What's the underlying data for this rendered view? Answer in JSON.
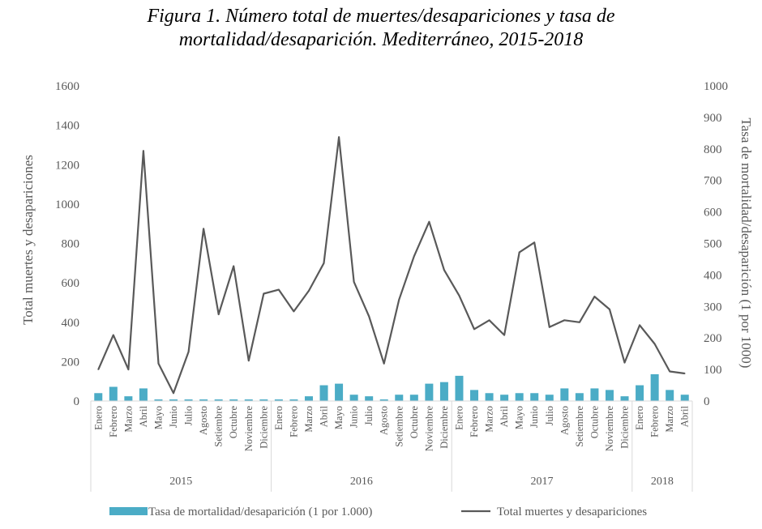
{
  "title": {
    "line1": "Figura 1. Número total de muertes/desapariciones y tasa de",
    "line2": "mortalidad/desaparición. Mediterráneo, 2015-2018"
  },
  "chart_data": {
    "type": "bar+line",
    "ylabel_left": "Total muertes y desapariciones",
    "ylabel_right": "Tasa de mortalidad/desaparición (1 por 1000)",
    "ylim_left": [
      0,
      1600
    ],
    "yticks_left": [
      "0",
      "200",
      "400",
      "600",
      "800",
      "1000",
      "1200",
      "1400",
      "1600"
    ],
    "ylim_right": [
      0,
      1000
    ],
    "yticks_right": [
      "0",
      "100",
      "200",
      "300",
      "400",
      "500",
      "600",
      "700",
      "800",
      "900",
      "1000"
    ],
    "grid": false,
    "legend_position": "bottom",
    "months": [
      "Enero",
      "Febrero",
      "Marzo",
      "Abril",
      "Mayo",
      "Junio",
      "Julio",
      "Agosto",
      "Setiembre",
      "Octubre",
      "Noviembre",
      "Diciembre",
      "Enero",
      "Febrero",
      "Marzo",
      "Abril",
      "Mayo",
      "Junio",
      "Julio",
      "Agosto",
      "Setiembre",
      "Octubre",
      "Noviembre",
      "Diciembre",
      "Enero",
      "Febrero",
      "Marzo",
      "Abril",
      "Mayo",
      "Junio",
      "Julio",
      "Agosto",
      "Setiembre",
      "Octubre",
      "Noviembre",
      "Diciembre",
      "Enero",
      "Febrero",
      "Marzo",
      "Abril"
    ],
    "years": [
      {
        "label": "2015",
        "months": 12
      },
      {
        "label": "2016",
        "months": 12
      },
      {
        "label": "2017",
        "months": 12
      },
      {
        "label": "2018",
        "months": 4
      }
    ],
    "series": [
      {
        "name": "Tasa de mortalidad/desaparición (1 por 1.000)",
        "type": "bar",
        "axis": "right",
        "color": "#4BACC6",
        "values": [
          25,
          45,
          15,
          40,
          5,
          5,
          5,
          5,
          5,
          5,
          5,
          5,
          5,
          5,
          15,
          50,
          55,
          20,
          15,
          5,
          20,
          20,
          55,
          60,
          80,
          35,
          25,
          20,
          25,
          25,
          20,
          40,
          25,
          40,
          35,
          15,
          50,
          85,
          35,
          20
        ]
      },
      {
        "name": "Total muertes y desapariciones",
        "type": "line",
        "axis": "left",
        "color": "#595959",
        "values": [
          160,
          335,
          160,
          1270,
          190,
          40,
          250,
          875,
          440,
          685,
          205,
          545,
          565,
          455,
          560,
          700,
          1340,
          605,
          430,
          190,
          515,
          735,
          910,
          665,
          535,
          365,
          410,
          335,
          755,
          805,
          375,
          410,
          400,
          530,
          465,
          195,
          385,
          290,
          150,
          140
        ]
      }
    ]
  }
}
